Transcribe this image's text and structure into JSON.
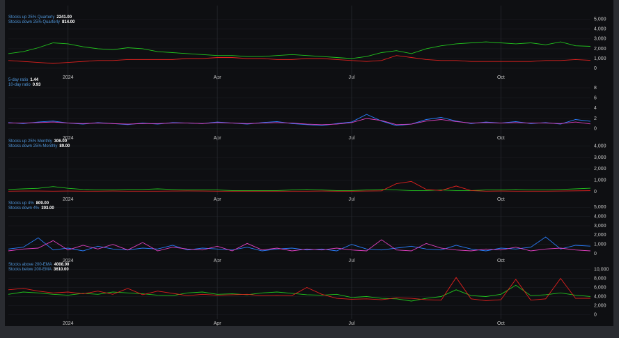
{
  "chart_data": [
    {
      "type": "line",
      "ylim": [
        -500,
        5700
      ],
      "yticks": [
        0,
        {
          "value": 1000,
          "label": "1,000"
        },
        {
          "value": 2000,
          "label": "2,000"
        },
        {
          "value": 3000,
          "label": "3,000"
        },
        {
          "value": 4000,
          "label": "4,000"
        },
        {
          "value": 5000,
          "label": "5,000"
        }
      ],
      "categories": [
        null,
        null,
        null,
        null,
        "2024",
        null,
        null,
        null,
        null,
        null,
        null,
        null,
        null,
        null,
        "Apr",
        null,
        null,
        null,
        null,
        null,
        null,
        null,
        null,
        "Jul",
        null,
        null,
        null,
        null,
        null,
        null,
        null,
        null,
        null,
        "Oct",
        null,
        null,
        null,
        null,
        null,
        null
      ],
      "series": [
        {
          "name": "Stocks up 25% Quarterly",
          "last_value_label": "2241.00",
          "color": "#22c51e",
          "values": [
            1500,
            1700,
            2100,
            2600,
            2500,
            2200,
            2000,
            1900,
            2100,
            2000,
            1700,
            1600,
            1500,
            1400,
            1300,
            1300,
            1200,
            1200,
            1300,
            1400,
            1300,
            1200,
            1100,
            1000,
            1200,
            1600,
            1800,
            1500,
            2000,
            2300,
            2500,
            2600,
            2700,
            2600,
            2500,
            2600,
            2400,
            2700,
            2300,
            2241
          ]
        },
        {
          "name": "Stocks down 25% Quarterly",
          "last_value_label": "814.00",
          "color": "#e0201e",
          "values": [
            800,
            700,
            600,
            500,
            600,
            700,
            800,
            800,
            900,
            900,
            900,
            900,
            1000,
            1000,
            1100,
            1100,
            1000,
            1000,
            900,
            900,
            1000,
            1000,
            900,
            800,
            700,
            800,
            1300,
            1100,
            900,
            800,
            800,
            700,
            700,
            700,
            700,
            700,
            800,
            800,
            900,
            814
          ]
        }
      ]
    },
    {
      "type": "line",
      "ylim": [
        -1,
        9.5
      ],
      "yticks": [
        0,
        2,
        4,
        6,
        8
      ],
      "categories": [
        null,
        null,
        null,
        null,
        "2024",
        null,
        null,
        null,
        null,
        null,
        null,
        null,
        null,
        null,
        "Apr",
        null,
        null,
        null,
        null,
        null,
        null,
        null,
        null,
        "Jul",
        null,
        null,
        null,
        null,
        null,
        null,
        null,
        null,
        null,
        "Oct",
        null,
        null,
        null,
        null,
        null,
        null
      ],
      "series": [
        {
          "name": "5-day ratio",
          "last_value_label": "1.44",
          "color": "#2a7fff",
          "values": [
            1.2,
            1.0,
            1.3,
            1.5,
            1.1,
            0.9,
            1.2,
            1.0,
            0.8,
            1.1,
            0.9,
            1.2,
            1.1,
            1.0,
            1.3,
            1.1,
            0.9,
            1.2,
            1.4,
            1.0,
            0.8,
            0.6,
            1.0,
            1.3,
            2.8,
            1.5,
            0.6,
            0.9,
            1.8,
            2.2,
            1.5,
            1.0,
            1.3,
            1.1,
            1.4,
            1.0,
            1.2,
            0.9,
            1.8,
            1.44
          ]
        },
        {
          "name": "10-day ratio",
          "last_value_label": "0.93",
          "color": "#e040c0",
          "values": [
            1.1,
            1.1,
            1.2,
            1.3,
            1.1,
            1.0,
            1.1,
            1.0,
            0.9,
            1.0,
            1.0,
            1.1,
            1.1,
            1.0,
            1.2,
            1.1,
            1.0,
            1.1,
            1.2,
            1.1,
            0.9,
            0.8,
            0.9,
            1.2,
            2.0,
            1.6,
            0.8,
            0.9,
            1.5,
            1.8,
            1.4,
            1.1,
            1.2,
            1.1,
            1.2,
            1.1,
            1.1,
            1.0,
            1.3,
            0.93
          ]
        }
      ]
    },
    {
      "type": "line",
      "ylim": [
        -300,
        4400
      ],
      "yticks": [
        0,
        {
          "value": 1000,
          "label": "1,000"
        },
        {
          "value": 2000,
          "label": "2,000"
        },
        {
          "value": 3000,
          "label": "3,000"
        },
        {
          "value": 4000,
          "label": "4,000"
        }
      ],
      "categories": [
        null,
        null,
        null,
        null,
        "2024",
        null,
        null,
        null,
        null,
        null,
        null,
        null,
        null,
        null,
        "Apr",
        null,
        null,
        null,
        null,
        null,
        null,
        null,
        null,
        "Jul",
        null,
        null,
        null,
        null,
        null,
        null,
        null,
        null,
        null,
        "Oct",
        null,
        null,
        null,
        null,
        null,
        null
      ],
      "series": [
        {
          "name": "Stocks up 25% Monthly",
          "last_value_label": "306.00",
          "color": "#22c51e",
          "values": [
            200,
            250,
            300,
            450,
            300,
            200,
            150,
            150,
            200,
            200,
            250,
            200,
            150,
            150,
            150,
            100,
            100,
            100,
            100,
            150,
            200,
            150,
            100,
            100,
            150,
            200,
            150,
            100,
            100,
            150,
            100,
            100,
            150,
            150,
            200,
            150,
            150,
            200,
            250,
            306
          ]
        },
        {
          "name": "Stocks down 25% Monthly",
          "last_value_label": "89.00",
          "color": "#e0201e",
          "values": [
            50,
            60,
            60,
            50,
            60,
            50,
            50,
            60,
            50,
            50,
            50,
            60,
            70,
            60,
            50,
            50,
            50,
            50,
            50,
            50,
            50,
            60,
            50,
            50,
            60,
            80,
            700,
            900,
            200,
            100,
            500,
            100,
            50,
            60,
            50,
            50,
            50,
            60,
            80,
            89
          ]
        }
      ]
    },
    {
      "type": "line",
      "ylim": [
        -300,
        5400
      ],
      "yticks": [
        0,
        {
          "value": 1000,
          "label": "1,000"
        },
        {
          "value": 2000,
          "label": "2,000"
        },
        {
          "value": 3000,
          "label": "3,000"
        },
        {
          "value": 4000,
          "label": "4,000"
        },
        {
          "value": 5000,
          "label": "5,000"
        }
      ],
      "categories": [
        null,
        null,
        null,
        null,
        "2024",
        null,
        null,
        null,
        null,
        null,
        null,
        null,
        null,
        null,
        "Apr",
        null,
        null,
        null,
        null,
        null,
        null,
        null,
        null,
        "Jul",
        null,
        null,
        null,
        null,
        null,
        null,
        null,
        null,
        null,
        "Oct",
        null,
        null,
        null,
        null,
        null,
        null
      ],
      "series": [
        {
          "name": "Stocks up 4%",
          "last_value_label": "809.00",
          "color": "#2a7fff",
          "values": [
            500,
            700,
            1700,
            400,
            600,
            300,
            800,
            500,
            400,
            600,
            500,
            900,
            400,
            600,
            500,
            400,
            700,
            300,
            500,
            600,
            400,
            500,
            300,
            1000,
            500,
            400,
            600,
            800,
            500,
            400,
            900,
            500,
            300,
            600,
            500,
            700,
            1800,
            500,
            900,
            809
          ]
        },
        {
          "name": "Stocks down 4%",
          "last_value_label": "303.00",
          "color": "#e040c0",
          "values": [
            300,
            500,
            600,
            1400,
            400,
            900,
            500,
            1000,
            400,
            1200,
            300,
            700,
            500,
            400,
            800,
            300,
            1100,
            400,
            600,
            300,
            500,
            400,
            600,
            400,
            300,
            1500,
            400,
            300,
            1100,
            600,
            400,
            300,
            500,
            400,
            700,
            300,
            500,
            600,
            400,
            303
          ]
        }
      ]
    },
    {
      "type": "line",
      "ylim": [
        -1000,
        11000
      ],
      "yticks": [
        0,
        {
          "value": 2000,
          "label": "2,000"
        },
        {
          "value": 4000,
          "label": "4,000"
        },
        {
          "value": 6000,
          "label": "6,000"
        },
        {
          "value": 8000,
          "label": "8,000"
        },
        {
          "value": 10000,
          "label": "10,000"
        }
      ],
      "categories": [
        null,
        null,
        null,
        null,
        "2024",
        null,
        null,
        null,
        null,
        null,
        null,
        null,
        null,
        null,
        "Apr",
        null,
        null,
        null,
        null,
        null,
        null,
        null,
        null,
        "Jul",
        null,
        null,
        null,
        null,
        null,
        null,
        null,
        null,
        null,
        "Oct",
        null,
        null,
        null,
        null,
        null,
        null
      ],
      "series": [
        {
          "name": "Stocks above 200-EMA",
          "last_value_label": "4008.00",
          "color": "#22c51e",
          "values": [
            4500,
            5000,
            4800,
            4500,
            4300,
            4700,
            4500,
            5000,
            4800,
            4600,
            4300,
            4200,
            4800,
            5000,
            4500,
            4600,
            4400,
            4800,
            5000,
            4700,
            4400,
            4300,
            4500,
            3800,
            4000,
            3600,
            3500,
            3000,
            3600,
            4000,
            5500,
            4200,
            4000,
            4500,
            6500,
            4200,
            4400,
            4800,
            4300,
            4008
          ]
        },
        {
          "name": "Stocks below 200-EMA",
          "last_value_label": "3610.00",
          "color": "#e0201e",
          "values": [
            5500,
            5800,
            5200,
            4800,
            5000,
            4600,
            5200,
            4500,
            5800,
            4400,
            5200,
            4700,
            4200,
            4500,
            4300,
            4400,
            4500,
            4200,
            4300,
            4200,
            6000,
            4500,
            3600,
            3400,
            3500,
            3300,
            3700,
            3600,
            3300,
            3200,
            8200,
            3500,
            3100,
            3300,
            7800,
            3200,
            3500,
            8000,
            3600,
            3610
          ]
        }
      ]
    }
  ]
}
